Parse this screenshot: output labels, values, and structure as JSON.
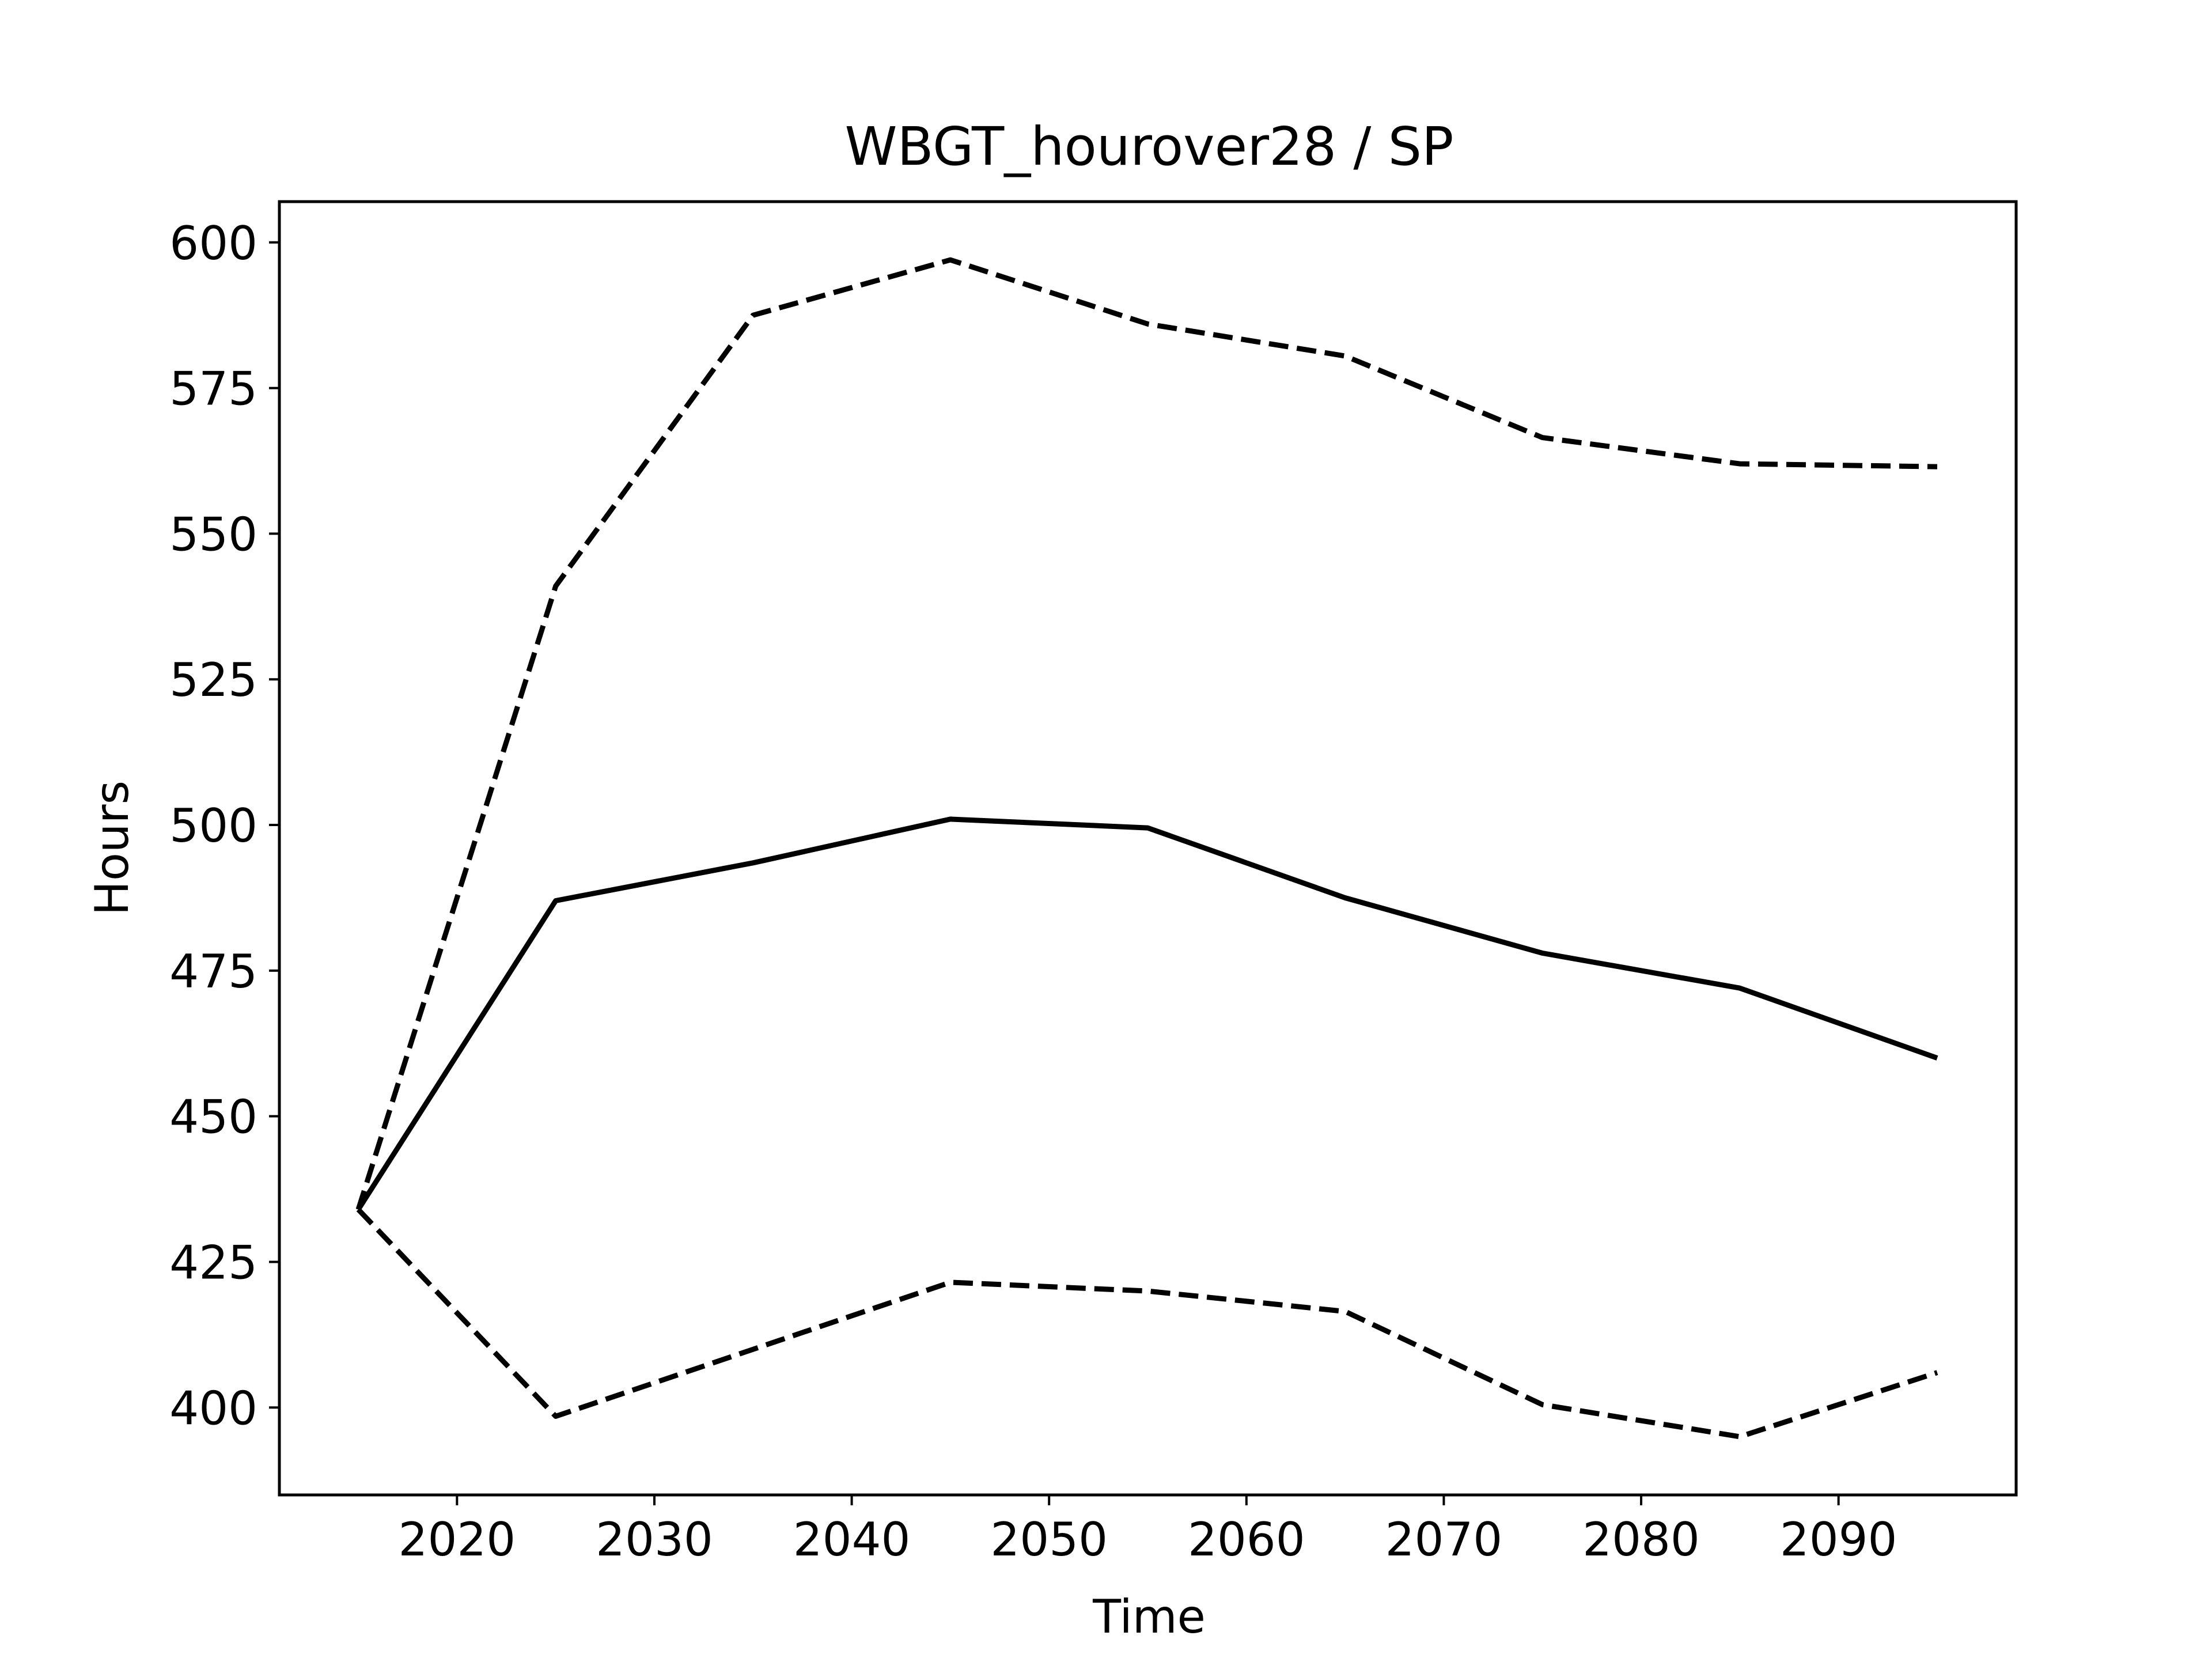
{
  "chart_data": {
    "type": "line",
    "title": "WBGT_hourover28 / SP",
    "xlabel": "Time",
    "ylabel": "Hours",
    "xlim": [
      2011,
      2099
    ],
    "ylim": [
      385,
      607
    ],
    "xticks": [
      2020,
      2030,
      2040,
      2050,
      2060,
      2070,
      2080,
      2090
    ],
    "yticks": [
      400,
      425,
      450,
      475,
      500,
      525,
      550,
      575,
      600
    ],
    "grid": false,
    "legend": null,
    "x": [
      2015,
      2025,
      2035,
      2045,
      2055,
      2065,
      2075,
      2085,
      2095
    ],
    "series": [
      {
        "style": "solid",
        "color": "#000000",
        "values": [
          434,
          487,
          493.5,
          501,
          499.5,
          487.5,
          478,
          472,
          460
        ]
      },
      {
        "style": "dashed",
        "color": "#000000",
        "values": [
          434,
          541,
          587.5,
          597,
          586,
          580.5,
          566.5,
          562,
          561.5
        ]
      },
      {
        "style": "dashed",
        "color": "#000000",
        "values": [
          434,
          398.5,
          410,
          421.5,
          420,
          416.5,
          400.5,
          395,
          406
        ]
      }
    ]
  }
}
